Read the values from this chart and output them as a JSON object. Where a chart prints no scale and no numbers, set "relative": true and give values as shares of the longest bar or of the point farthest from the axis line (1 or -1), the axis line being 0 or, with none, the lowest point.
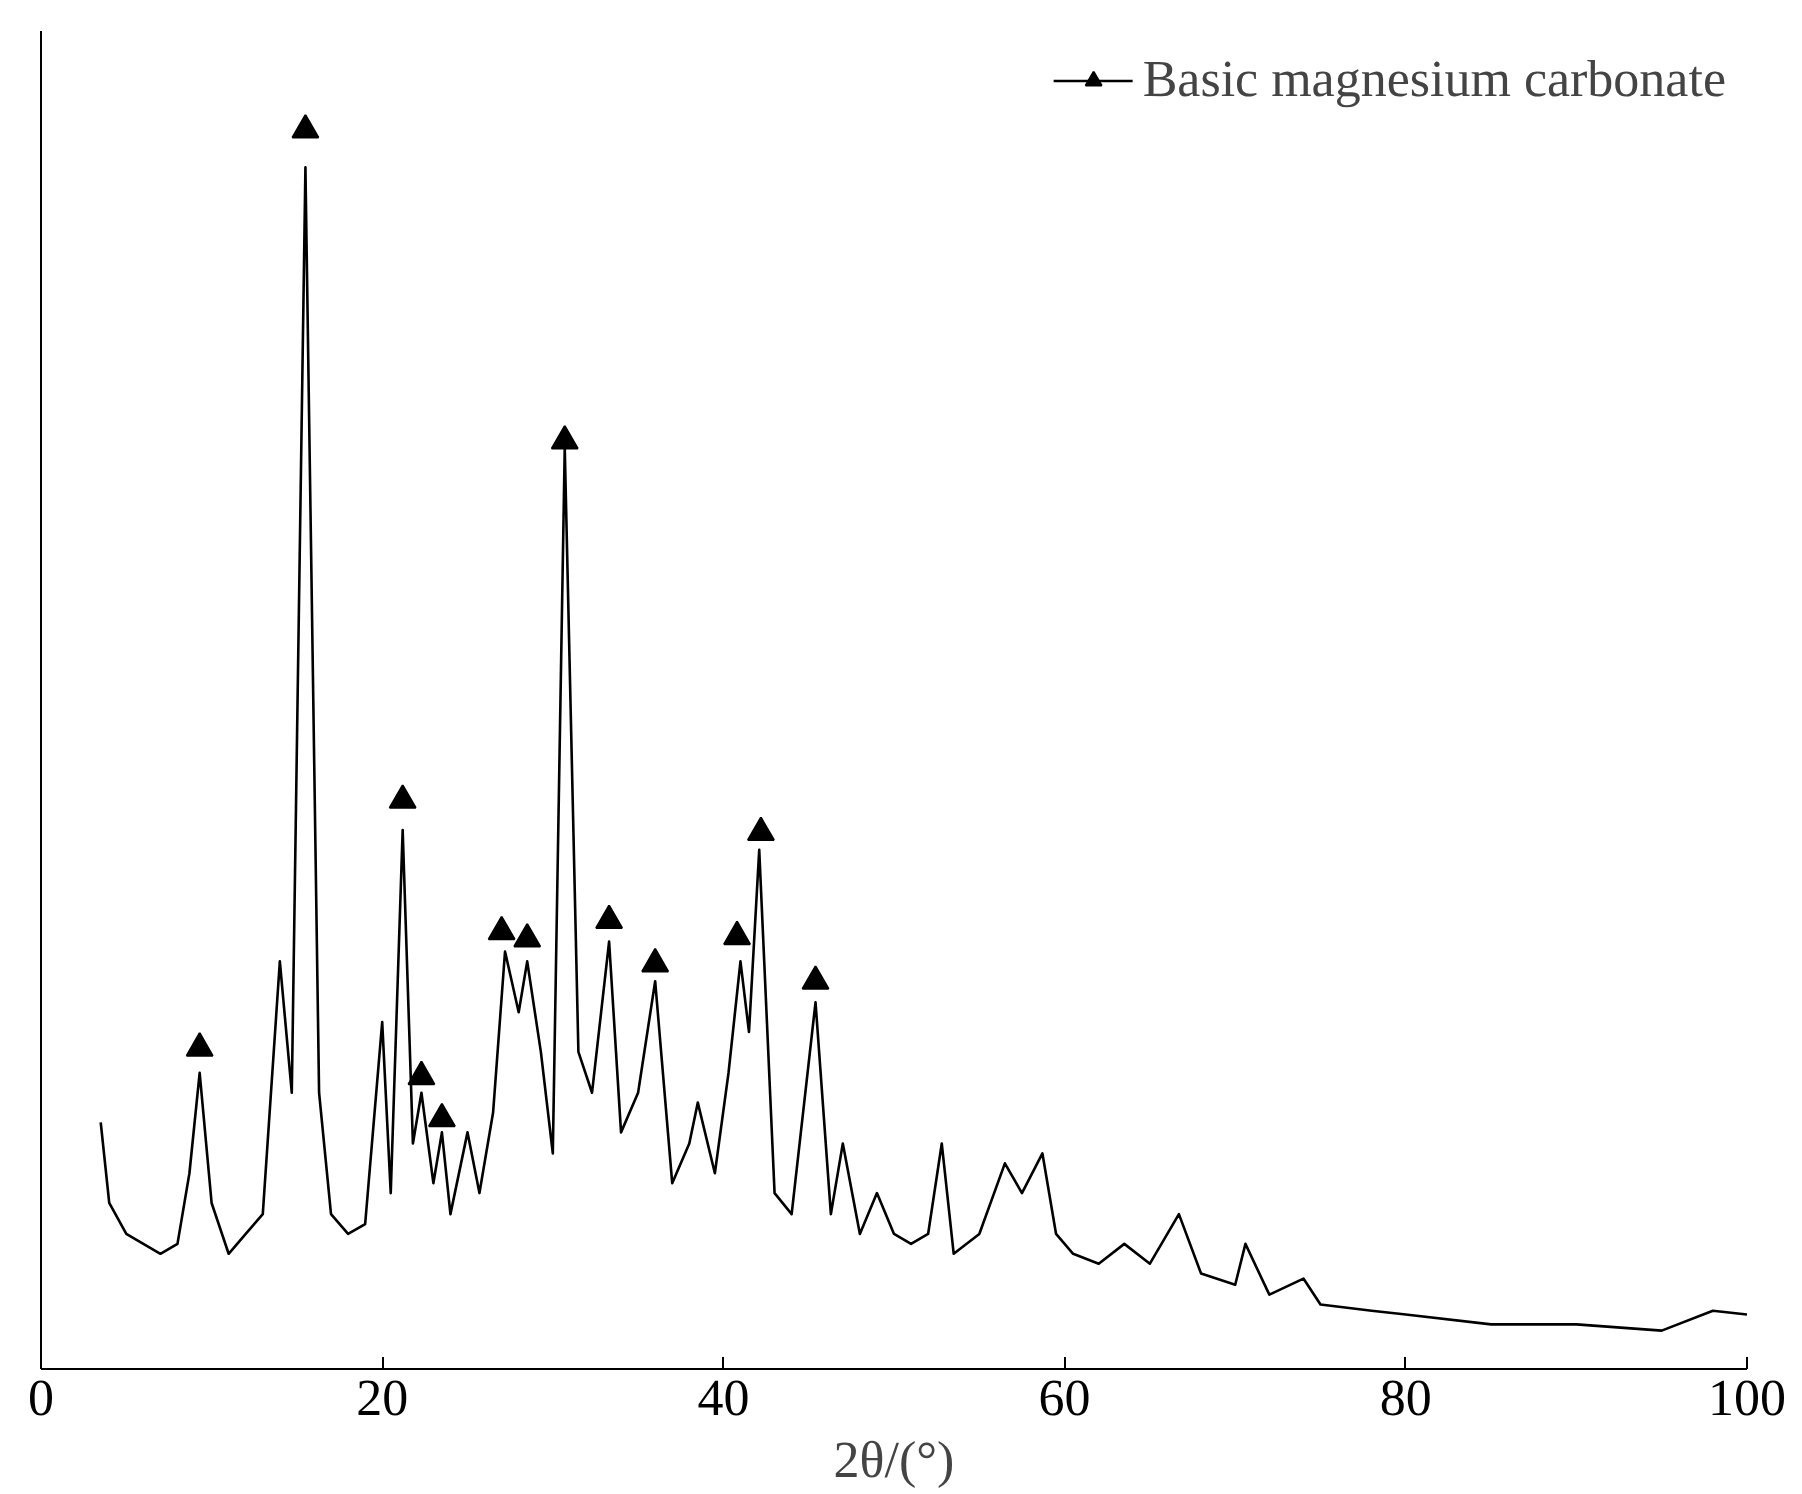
{
  "chart_data": {
    "type": "line",
    "relative": true,
    "xlabel": "2θ/(°)",
    "xlim": [
      0,
      100
    ],
    "xticks": [
      0,
      20,
      40,
      60,
      80,
      100
    ],
    "legend": "top right",
    "grid": false,
    "series": [
      {
        "name": "Basic magnesium carbonate",
        "color": "#000000",
        "x": [
          3.5,
          4,
          5,
          6,
          7,
          8,
          8.7,
          9.3,
          10,
          11,
          12,
          13,
          14,
          14.7,
          15.5,
          16.3,
          17,
          18,
          19,
          20,
          20.5,
          21.2,
          21.8,
          22.3,
          23,
          23.5,
          24,
          25,
          25.7,
          26.5,
          27.2,
          28,
          28.5,
          29.3,
          30,
          30.7,
          31.5,
          32.3,
          33.3,
          34,
          35,
          36,
          37,
          38,
          38.5,
          39.5,
          40.3,
          41,
          41.5,
          42.1,
          43,
          44,
          45.4,
          46.3,
          47,
          48,
          49,
          50,
          51,
          52,
          52.8,
          53.5,
          55,
          56.5,
          57.5,
          58.7,
          59.5,
          60.5,
          62,
          63.5,
          65,
          66.7,
          68,
          70,
          70.6,
          72,
          74,
          75,
          78,
          80,
          85,
          90,
          95,
          98,
          100
        ],
        "values": [
          0.199,
          0.134,
          0.109,
          0.101,
          0.093,
          0.101,
          0.158,
          0.239,
          0.134,
          0.093,
          0.109,
          0.125,
          0.329,
          0.223,
          0.97,
          0.223,
          0.125,
          0.109,
          0.117,
          0.28,
          0.142,
          0.435,
          0.182,
          0.223,
          0.15,
          0.191,
          0.125,
          0.191,
          0.142,
          0.207,
          0.337,
          0.288,
          0.329,
          0.256,
          0.174,
          0.744,
          0.256,
          0.223,
          0.345,
          0.191,
          0.223,
          0.313,
          0.15,
          0.182,
          0.215,
          0.158,
          0.239,
          0.329,
          0.272,
          0.419,
          0.142,
          0.125,
          0.296,
          0.125,
          0.182,
          0.109,
          0.142,
          0.109,
          0.101,
          0.109,
          0.182,
          0.093,
          0.109,
          0.166,
          0.142,
          0.174,
          0.109,
          0.093,
          0.085,
          0.101,
          0.085,
          0.125,
          0.077,
          0.068,
          0.101,
          0.06,
          0.073,
          0.052,
          0.047,
          0.044,
          0.036,
          0.036,
          0.031,
          0.047,
          0.044
        ]
      },
      {
        "type": "scatter",
        "marker": "triangle",
        "color": "#000000",
        "x": [
          9.3,
          15.5,
          21.2,
          22.3,
          23.5,
          27,
          28.5,
          30.7,
          33.3,
          36,
          40.8,
          42.2,
          45.4
        ],
        "values": [
          0.259,
          1,
          0.459,
          0.236,
          0.202,
          0.353,
          0.347,
          0.749,
          0.362,
          0.327,
          0.349,
          0.433,
          0.313
        ]
      }
    ]
  }
}
